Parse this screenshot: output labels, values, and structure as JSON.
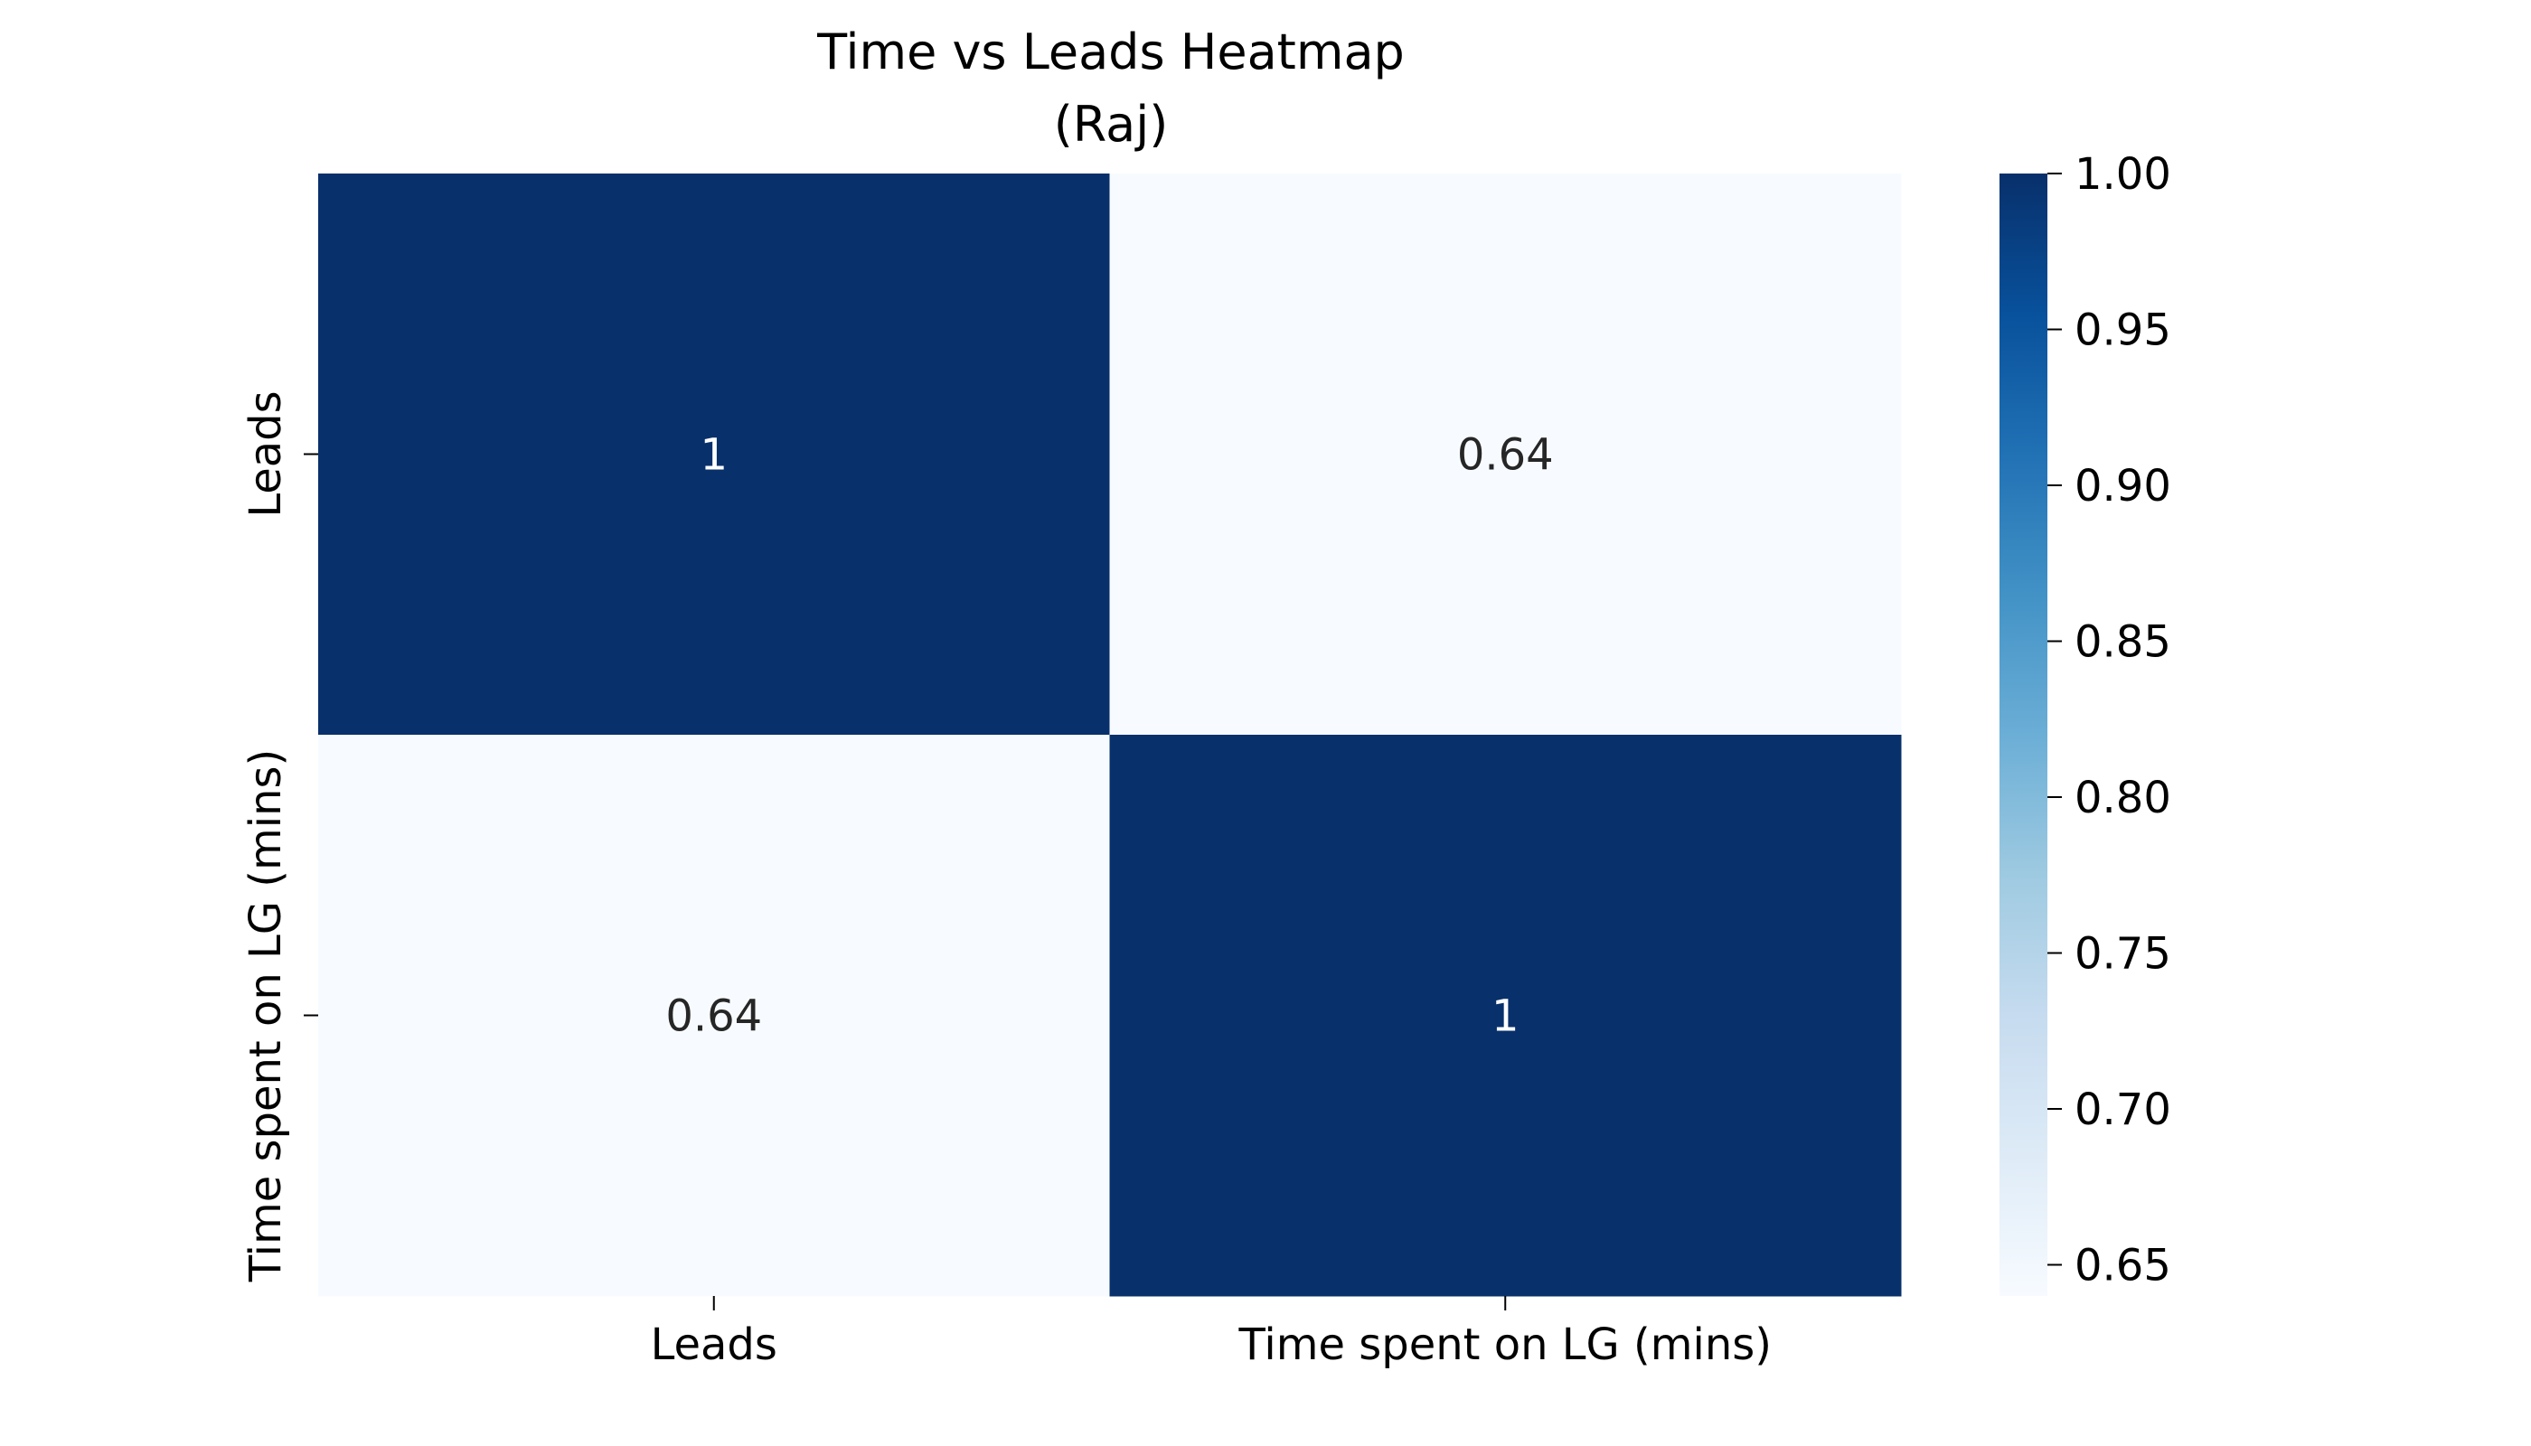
{
  "chart_data": {
    "type": "heatmap",
    "title": "Time vs Leads Heatmap",
    "subtitle": "(Raj)",
    "rows": [
      "Leads",
      "Time spent on LG (mins)"
    ],
    "columns": [
      "Leads",
      "Time spent on LG (mins)"
    ],
    "values": [
      [
        1,
        0.64
      ],
      [
        0.64,
        1
      ]
    ],
    "value_labels": [
      [
        "1",
        "0.64"
      ],
      [
        "0.64",
        "1"
      ]
    ],
    "colorscale": "Blues",
    "vmin": 0.64,
    "vmax": 1.0,
    "colorbar_ticks": [
      "1.00",
      "0.95",
      "0.90",
      "0.85",
      "0.80",
      "0.75",
      "0.70",
      "0.65"
    ],
    "colorbar_tick_values": [
      1.0,
      0.95,
      0.9,
      0.85,
      0.8,
      0.75,
      0.7,
      0.65
    ],
    "xlabel": "",
    "ylabel": ""
  }
}
